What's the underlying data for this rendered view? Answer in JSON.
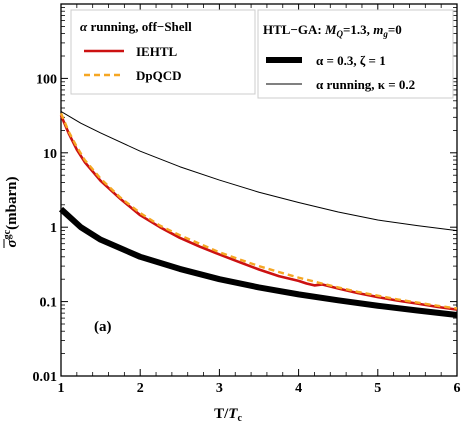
{
  "chart_data": {
    "type": "line",
    "xlabel": "T/T_c",
    "xlabel_main": "T/",
    "xlabel_italic": "T",
    "xlabel_sub": "c",
    "ylabel": "σ̄^gc(mbarn)",
    "ylabel_sym": "σ",
    "ylabel_sup": "gc",
    "ylabel_unit": "(mbarn)",
    "xlim": [
      1,
      6
    ],
    "ylim": [
      0.01,
      1000
    ],
    "yscale": "log",
    "xticks": [
      "1",
      "2",
      "3",
      "4",
      "5",
      "6"
    ],
    "yticks": [
      "0.01",
      "0.1",
      "1",
      "10",
      "100"
    ],
    "grid": false,
    "annotation": "(a)",
    "legends": [
      {
        "title": "α running, off−Shell",
        "title_sym": "α",
        "title_rest": " running, off−Shell",
        "placement": "top-left",
        "entries": [
          {
            "label": "IEHTL",
            "color": "#cc1111",
            "style": "solid"
          },
          {
            "label": "DpQCD",
            "color": "#f5a623",
            "style": "dashed"
          }
        ]
      },
      {
        "title": "HTL−GA: M_Q=1.3, m_g=0",
        "title_a": "HTL−GA: ",
        "title_M": "M",
        "title_Msub": "Q",
        "title_b": "=1.3, ",
        "title_m": "m",
        "title_msub": "g",
        "title_c": "=0",
        "placement": "top-right",
        "entries": [
          {
            "label": "α = 0.3, ζ = 1",
            "color": "#000000",
            "style": "thick"
          },
          {
            "label": "α running, κ = 0.2",
            "color": "#000000",
            "style": "thin"
          }
        ]
      }
    ],
    "series": [
      {
        "name": "IEHTL",
        "color": "#cc1111",
        "x": [
          1.0,
          1.1,
          1.2,
          1.3,
          1.5,
          1.75,
          2.0,
          2.25,
          2.5,
          2.75,
          3.0,
          3.25,
          3.5,
          3.75,
          4.0,
          4.1,
          4.2,
          4.3,
          4.5,
          4.75,
          5.0,
          5.25,
          5.5,
          5.75,
          6.0
        ],
        "y": [
          32,
          18,
          11,
          7.5,
          4.2,
          2.4,
          1.45,
          1.0,
          0.72,
          0.55,
          0.43,
          0.34,
          0.27,
          0.22,
          0.19,
          0.175,
          0.165,
          0.17,
          0.15,
          0.13,
          0.115,
          0.103,
          0.094,
          0.085,
          0.078
        ]
      },
      {
        "name": "DpQCD",
        "color": "#f5a623",
        "x": [
          1.0,
          1.1,
          1.2,
          1.3,
          1.5,
          1.75,
          2.0,
          2.25,
          2.5,
          2.75,
          3.0,
          3.25,
          3.5,
          3.75,
          4.0,
          4.25,
          4.5,
          4.75,
          5.0,
          5.25,
          5.5,
          5.75,
          6.0
        ],
        "y": [
          34,
          19,
          12,
          8,
          4.5,
          2.5,
          1.55,
          1.05,
          0.78,
          0.6,
          0.46,
          0.37,
          0.3,
          0.25,
          0.21,
          0.18,
          0.155,
          0.135,
          0.12,
          0.107,
          0.097,
          0.088,
          0.081
        ]
      },
      {
        "name": "α = 0.3, ζ = 1",
        "color": "#000000",
        "x": [
          1.0,
          1.25,
          1.5,
          2.0,
          2.5,
          3.0,
          3.5,
          4.0,
          4.5,
          5.0,
          5.5,
          6.0
        ],
        "y": [
          1.75,
          1.0,
          0.68,
          0.4,
          0.275,
          0.2,
          0.155,
          0.125,
          0.104,
          0.088,
          0.076,
          0.066
        ]
      },
      {
        "name": "α running, κ = 0.2",
        "color": "#000000",
        "x": [
          1.0,
          1.25,
          1.5,
          2.0,
          2.5,
          3.0,
          3.5,
          4.0,
          4.5,
          5.0,
          5.5,
          6.0
        ],
        "y": [
          36,
          25,
          18.5,
          10.5,
          6.5,
          4.3,
          2.95,
          2.15,
          1.6,
          1.25,
          1.05,
          0.9
        ]
      }
    ]
  }
}
